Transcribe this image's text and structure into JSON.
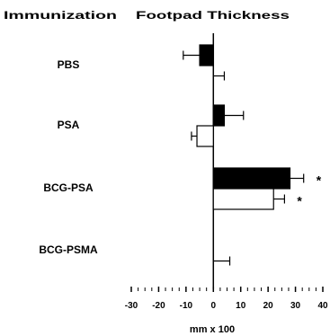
{
  "chart_data": {
    "type": "bar",
    "orientation": "horizontal",
    "header_left": "Immunization",
    "header_right": "Footpad Thickness",
    "xlabel": "mm x 100",
    "xlim": [
      -30,
      40
    ],
    "x_ticks": [
      "-30",
      "-20",
      "-10",
      "0",
      "10",
      "20",
      "30",
      "40"
    ],
    "categories": [
      "PBS",
      "PSA",
      "BCG-PSA",
      "BCG-PSMA"
    ],
    "series": [
      {
        "fill": "#000000",
        "values": [
          -5,
          4,
          28,
          0
        ],
        "errors": [
          6,
          7,
          5,
          0
        ]
      },
      {
        "fill": "#ffffff",
        "values": [
          0,
          -6,
          22,
          0
        ],
        "errors": [
          4,
          2,
          4,
          6
        ]
      }
    ],
    "significance_marker": "*",
    "significance": [
      {
        "category": "BCG-PSA",
        "series": 0
      },
      {
        "category": "BCG-PSA",
        "series": 1
      }
    ],
    "grid": false,
    "legend": "none"
  }
}
